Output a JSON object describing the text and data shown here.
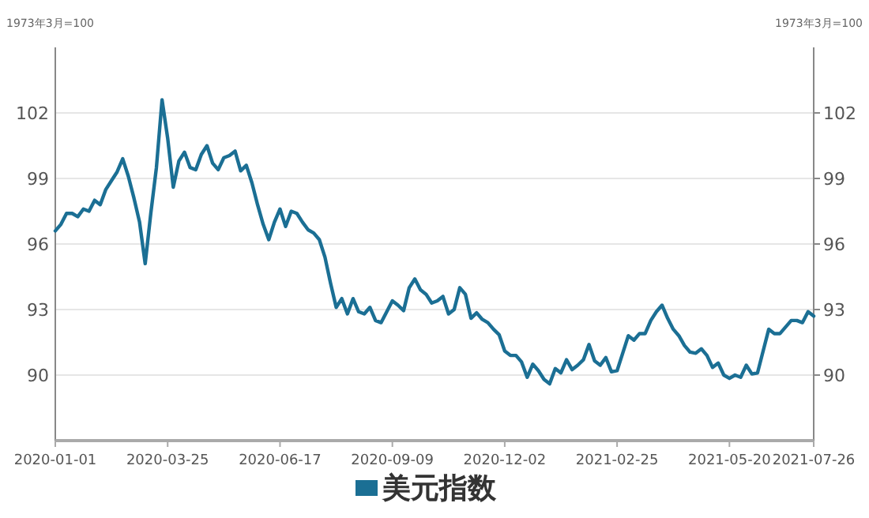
{
  "chart_data": {
    "type": "line",
    "ylabel": "1973年3月=100",
    "y2label": "1973年3月=100",
    "categories": [
      "2020-01-01",
      null,
      null,
      null,
      null,
      null,
      null,
      null,
      null,
      null,
      null,
      null,
      null,
      null,
      null,
      null,
      null,
      null,
      null,
      null,
      "2020-03-25",
      null,
      null,
      null,
      null,
      null,
      null,
      null,
      null,
      null,
      null,
      null,
      null,
      null,
      null,
      null,
      null,
      null,
      null,
      null,
      "2020-06-17",
      null,
      null,
      null,
      null,
      null,
      null,
      null,
      null,
      null,
      null,
      null,
      null,
      null,
      null,
      null,
      null,
      null,
      null,
      null,
      "2020-09-09",
      null,
      null,
      null,
      null,
      null,
      null,
      null,
      null,
      null,
      null,
      null,
      null,
      null,
      null,
      null,
      null,
      null,
      null,
      null,
      "2020-12-02",
      null,
      null,
      null,
      null,
      null,
      null,
      null,
      null,
      null,
      null,
      null,
      null,
      null,
      null,
      null,
      null,
      null,
      null,
      null,
      "2021-02-25",
      null,
      null,
      null,
      null,
      null,
      null,
      null,
      null,
      null,
      null,
      null,
      null,
      null,
      null,
      null,
      null,
      null,
      null,
      null,
      "2021-05-20",
      null,
      null,
      null,
      null,
      null,
      null,
      null,
      null,
      null,
      null,
      null,
      null,
      null,
      null,
      "2021-07-26"
    ],
    "series": [
      {
        "name": "美元指数",
        "color": "#1b6f94",
        "values": [
          96.6,
          96.9,
          97.4,
          97.4,
          97.25,
          97.6,
          97.5,
          98.0,
          97.8,
          98.5,
          98.9,
          99.3,
          99.9,
          99.1,
          98.1,
          97.0,
          95.1,
          97.4,
          99.5,
          102.6,
          100.85,
          98.6,
          99.8,
          100.2,
          99.5,
          99.4,
          100.1,
          100.5,
          99.7,
          99.4,
          99.95,
          100.05,
          100.25,
          99.35,
          99.6,
          98.8,
          97.8,
          96.9,
          96.2,
          97.0,
          97.6,
          96.8,
          97.5,
          97.4,
          97.0,
          96.65,
          96.5,
          96.2,
          95.4,
          94.2,
          93.1,
          93.5,
          92.8,
          93.5,
          92.9,
          92.8,
          93.1,
          92.5,
          92.4,
          92.9,
          93.4,
          93.2,
          92.95,
          94.0,
          94.4,
          93.9,
          93.7,
          93.3,
          93.4,
          93.6,
          92.8,
          93.0,
          94.0,
          93.7,
          92.6,
          92.85,
          92.55,
          92.4,
          92.1,
          91.85,
          91.1,
          90.9,
          90.9,
          90.6,
          89.9,
          90.5,
          90.2,
          89.8,
          89.6,
          90.3,
          90.1,
          90.7,
          90.25,
          90.45,
          90.7,
          91.4,
          90.65,
          90.45,
          90.8,
          90.15,
          90.2,
          91.0,
          91.8,
          91.6,
          91.9,
          91.9,
          92.5,
          92.9,
          93.2,
          92.6,
          92.1,
          91.8,
          91.35,
          91.05,
          91.0,
          91.2,
          90.9,
          90.35,
          90.55,
          90.0,
          89.85,
          90.0,
          89.9,
          90.45,
          90.05,
          90.1,
          91.1,
          92.1,
          91.9,
          91.9,
          92.2,
          92.5,
          92.5,
          92.4,
          92.9,
          92.7
        ]
      }
    ],
    "ylim": [
      87,
      105
    ],
    "yticks": [
      90,
      93,
      96,
      99,
      102
    ],
    "y2lim": [
      87,
      105
    ],
    "y2ticks": [
      90,
      93,
      96,
      99,
      102
    ],
    "grid": "y",
    "legend": "bottom"
  }
}
